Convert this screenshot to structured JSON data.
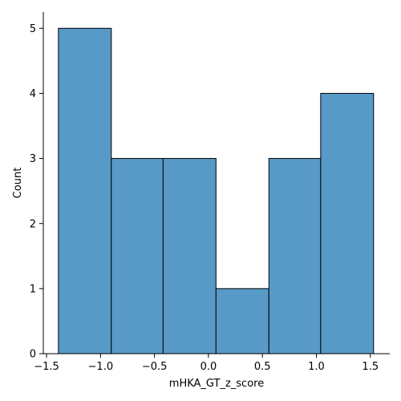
{
  "chart_data": {
    "type": "bar",
    "subtype": "histogram",
    "title": "",
    "xlabel": "mHKA_GT_z_score",
    "ylabel": "Count",
    "bins": [
      {
        "x0": -1.39,
        "x1": -0.9,
        "count": 5
      },
      {
        "x0": -0.9,
        "x1": -0.42,
        "count": 3
      },
      {
        "x0": -0.42,
        "x1": 0.07,
        "count": 3
      },
      {
        "x0": 0.07,
        "x1": 0.56,
        "count": 1
      },
      {
        "x0": 0.56,
        "x1": 1.04,
        "count": 3
      },
      {
        "x0": 1.04,
        "x1": 1.53,
        "count": 4
      }
    ],
    "xlim": [
      -1.53,
      1.68
    ],
    "ylim": [
      0,
      5.25
    ],
    "xticks": [
      -1.5,
      -1.0,
      -0.5,
      0.0,
      0.5,
      1.0,
      1.5
    ],
    "xtick_labels": [
      "−1.5",
      "−1.0",
      "−0.5",
      "0.0",
      "0.5",
      "1.0",
      "1.5"
    ],
    "yticks": [
      0,
      1,
      2,
      3,
      4,
      5
    ],
    "ytick_labels": [
      "0",
      "1",
      "2",
      "3",
      "4",
      "5"
    ],
    "bar_color": "#5799c7",
    "edge_color": "#000000",
    "grid": false,
    "spines": "left-bottom"
  }
}
